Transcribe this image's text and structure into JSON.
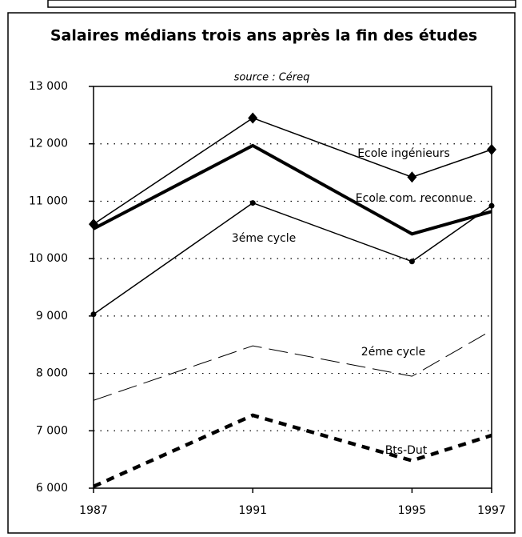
{
  "chart_data": {
    "type": "line",
    "title": "Salaires médians trois ans après la fin des études",
    "subtitle": "source : Céreq",
    "x": [
      1987,
      1991,
      1995,
      1997
    ],
    "xlim": [
      1987,
      1997
    ],
    "xticks": [
      1987,
      1991,
      1995,
      1997
    ],
    "ylim": [
      6000,
      13000
    ],
    "yticks": [
      {
        "value": 6000,
        "label": "6 000"
      },
      {
        "value": 7000,
        "label": "7 000"
      },
      {
        "value": 8000,
        "label": "8 000"
      },
      {
        "value": 9000,
        "label": "9 000"
      },
      {
        "value": 10000,
        "label": "10 000"
      },
      {
        "value": 11000,
        "label": "11 000"
      },
      {
        "value": 12000,
        "label": "12 000"
      },
      {
        "value": 13000,
        "label": "13 000"
      }
    ],
    "grid": true,
    "series": [
      {
        "name": "Ecole ingénieurs",
        "color": "#000000",
        "width": 1.5,
        "dash": "none",
        "marker": "diamond",
        "values": [
          10600,
          12450,
          11420,
          11900
        ]
      },
      {
        "name": "Ecole com. reconnue",
        "color": "#000000",
        "width": 4,
        "dash": "none",
        "marker": "none",
        "values": [
          10520,
          11970,
          10430,
          10820
        ]
      },
      {
        "name": "3éme cycle",
        "color": "#000000",
        "width": 1.5,
        "dash": "none",
        "marker": "dot",
        "values": [
          9030,
          10970,
          9950,
          10920
        ]
      },
      {
        "name": "2éme cycle",
        "color": "#000000",
        "width": 1,
        "dash": "24 9",
        "marker": "none",
        "values": [
          7530,
          8480,
          7950,
          8750
        ]
      },
      {
        "name": "Bts-Dut",
        "color": "#000000",
        "width": 4.5,
        "dash": "10 8",
        "marker": "none",
        "values": [
          6030,
          7270,
          6480,
          6920
        ]
      }
    ]
  }
}
